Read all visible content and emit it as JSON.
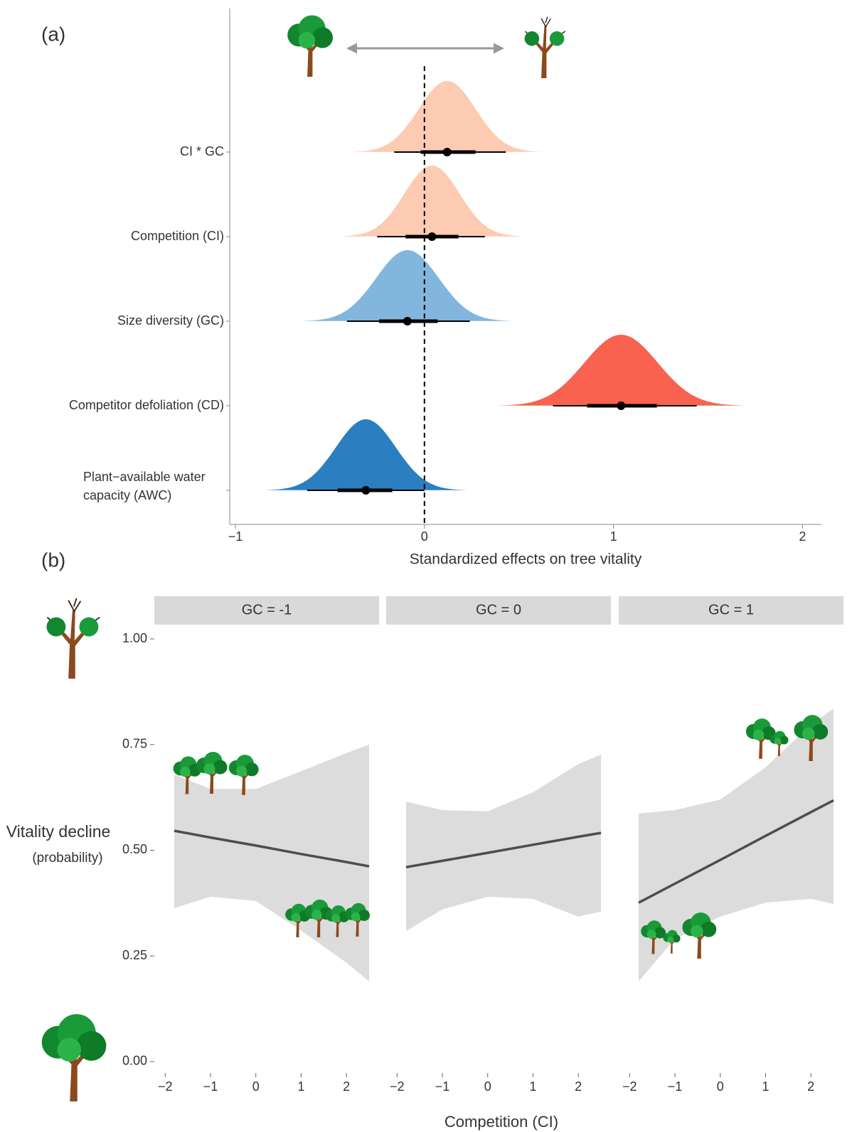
{
  "chart_data": [
    {
      "type": "halfeye",
      "panel_label": "(a)",
      "categories": [
        "CI * GC",
        "Competition (CI)",
        "Size diversity (GC)",
        "Competitor defoliation (CD)",
        [
          "Plant−available water",
          "capacity (AWC)"
        ]
      ],
      "values": [
        0.12,
        0.04,
        -0.09,
        1.04,
        -0.31
      ],
      "inner_lower": [
        -0.02,
        -0.1,
        -0.24,
        0.86,
        -0.46
      ],
      "inner_upper": [
        0.27,
        0.18,
        0.07,
        1.23,
        -0.17
      ],
      "outer_lower": [
        -0.16,
        -0.25,
        -0.41,
        0.68,
        -0.62
      ],
      "outer_upper": [
        0.43,
        0.32,
        0.24,
        1.44,
        0.0
      ],
      "colors": [
        "#fdcab2",
        "#fdcab2",
        "#82b6dc",
        "#f8624f",
        "#2b7fc0"
      ],
      "reference_line": 0,
      "xlim": [
        -1.03,
        2.1
      ],
      "xticks": [
        {
          "value": -1,
          "label": "−1"
        },
        0,
        1,
        2
      ],
      "xlabel": "Standardized effects on tree vitality"
    },
    {
      "type": "ribbon_line",
      "panel_label": "(b)",
      "facets": [
        {
          "title": "GC = -1",
          "x": [
            -1.8,
            -1,
            0,
            1,
            2,
            2.5
          ],
          "values": [
            0.546,
            0.53,
            0.511,
            0.491,
            0.472,
            0.462
          ],
          "lower": [
            0.363,
            0.39,
            0.38,
            0.31,
            0.234,
            0.19
          ],
          "upper": [
            0.679,
            0.645,
            0.645,
            0.687,
            0.73,
            0.75
          ]
        },
        {
          "title": "GC = 0",
          "x": [
            -1.8,
            -1,
            0,
            1,
            2,
            2.5
          ],
          "values": [
            0.46,
            0.475,
            0.494,
            0.513,
            0.532,
            0.541
          ],
          "lower": [
            0.309,
            0.36,
            0.39,
            0.385,
            0.343,
            0.355
          ],
          "upper": [
            0.615,
            0.595,
            0.592,
            0.637,
            0.704,
            0.726
          ]
        },
        {
          "title": "GC = 1",
          "x": [
            -1.8,
            -1,
            0,
            1,
            2,
            2.5
          ],
          "values": [
            0.376,
            0.421,
            0.477,
            0.534,
            0.59,
            0.618
          ],
          "lower": [
            0.19,
            0.29,
            0.343,
            0.376,
            0.385,
            0.373
          ],
          "upper": [
            0.587,
            0.595,
            0.62,
            0.696,
            0.797,
            0.835
          ]
        }
      ],
      "line_color": "#4d4d4d",
      "band_color": "#dcdcdc",
      "xlim": [
        -2.24,
        2.72
      ],
      "xticks": [
        {
          "value": -2,
          "label": "−2"
        },
        {
          "value": -1,
          "label": "−1"
        },
        0,
        1,
        2
      ],
      "ylim": [
        -0.027,
        1.032
      ],
      "yticks": [
        {
          "value": 0,
          "label": "0.00"
        },
        {
          "value": 0.25,
          "label": "0.25"
        },
        {
          "value": 0.5,
          "label": "0.50"
        },
        {
          "value": 0.75,
          "label": "0.75"
        },
        {
          "value": 1,
          "label": "1.00"
        }
      ],
      "xlabel": "Competition (CI)",
      "ylabel": [
        "Vitality decline",
        "(probability)"
      ]
    }
  ]
}
